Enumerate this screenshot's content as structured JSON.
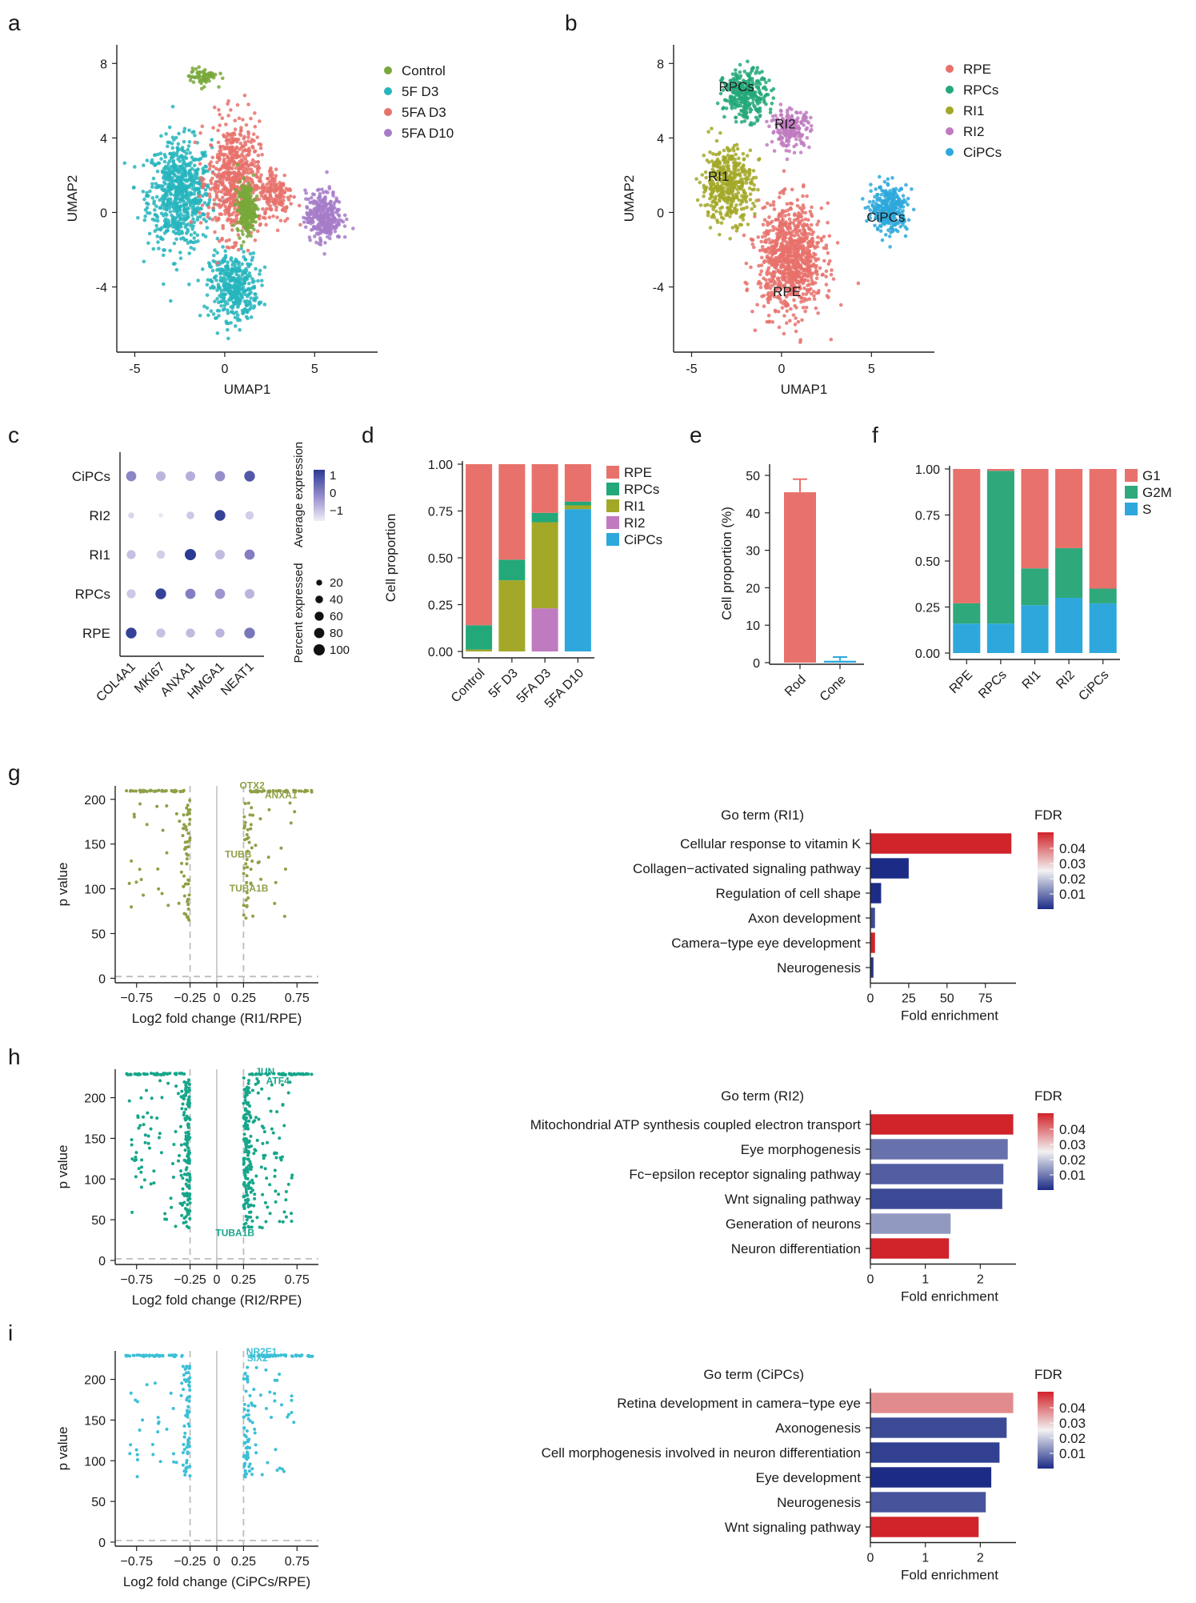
{
  "panel_labels": {
    "a": "a",
    "b": "b",
    "c": "c",
    "d": "d",
    "e": "e",
    "f": "f",
    "g": "g",
    "h": "h",
    "i": "i"
  },
  "colors": {
    "control": "#79a83b",
    "f5d3": "#27b5bd",
    "fad3": "#e8716b",
    "fad10": "#a67cc9",
    "rpe": "#e8716b",
    "rpcs": "#23a879",
    "ri1": "#a3a828",
    "ri2": "#c07ac0",
    "cipcs": "#2ea8dc",
    "g1": "#e8716b",
    "g2m": "#2fa87b",
    "s": "#2ea8dc",
    "volc_g": "#8ea046",
    "volc_h": "#17a68a",
    "volc_i": "#3cc0d6",
    "fdr_high": "#d1232a",
    "fdr_mid": "#f2f2f2",
    "fdr_low": "#1c2c86"
  },
  "chart_data": [
    {
      "id": "a",
      "type": "scatter",
      "title": "",
      "xlabel": "UMAP1",
      "ylabel": "UMAP2",
      "xticks": [
        "-5",
        "0",
        "5"
      ],
      "yticks": [
        "8",
        "4",
        "0",
        "-4"
      ],
      "xlim": [
        -6,
        8.5
      ],
      "ylim": [
        -7.5,
        9
      ],
      "legend": [
        "Control",
        "5F D3",
        "5FA D3",
        "5FA D10"
      ],
      "clusters": [
        {
          "name": "5F D3",
          "cx": -2.5,
          "cy": 1.0,
          "sx": 1.6,
          "sy": 2.6,
          "n": 700,
          "color": "#27b5bd"
        },
        {
          "name": "5F D3",
          "cx": 0.5,
          "cy": -4.0,
          "sx": 1.2,
          "sy": 1.6,
          "n": 400,
          "color": "#27b5bd"
        },
        {
          "name": "5FA D3",
          "cx": 0.5,
          "cy": 1.8,
          "sx": 1.3,
          "sy": 2.8,
          "n": 600,
          "color": "#e8716b"
        },
        {
          "name": "5FA D3",
          "cx": 2.8,
          "cy": 1.0,
          "sx": 0.9,
          "sy": 1.4,
          "n": 160,
          "color": "#e8716b"
        },
        {
          "name": "Control",
          "cx": 1.2,
          "cy": 0.2,
          "sx": 0.45,
          "sy": 1.2,
          "n": 260,
          "color": "#79a83b"
        },
        {
          "name": "Control",
          "cx": -1.2,
          "cy": 7.3,
          "sx": 0.7,
          "sy": 0.4,
          "n": 70,
          "color": "#79a83b"
        },
        {
          "name": "5FA D10",
          "cx": 5.5,
          "cy": -0.2,
          "sx": 0.9,
          "sy": 1.2,
          "n": 320,
          "color": "#a67cc9"
        }
      ]
    },
    {
      "id": "b",
      "type": "scatter",
      "title": "",
      "xlabel": "UMAP1",
      "ylabel": "UMAP2",
      "xticks": [
        "-5",
        "0",
        "5"
      ],
      "yticks": [
        "8",
        "4",
        "0",
        "-4"
      ],
      "xlim": [
        -6,
        8.5
      ],
      "ylim": [
        -7.5,
        9
      ],
      "legend": [
        "RPE",
        "RPCs",
        "RI1",
        "RI2",
        "CiPCs"
      ],
      "labels": [
        {
          "text": "RPCs",
          "x": -2.5,
          "y": 6.5
        },
        {
          "text": "RI2",
          "x": 0.2,
          "y": 4.5
        },
        {
          "text": "RI1",
          "x": -3.5,
          "y": 1.7
        },
        {
          "text": "CiPCs",
          "x": 5.8,
          "y": -0.5
        },
        {
          "text": "RPE",
          "x": 0.3,
          "y": -4.5
        }
      ],
      "clusters": [
        {
          "name": "RPE",
          "cx": 0.5,
          "cy": -2.5,
          "sx": 1.6,
          "sy": 2.6,
          "n": 900,
          "color": "#e8716b"
        },
        {
          "name": "RPCs",
          "cx": -2.0,
          "cy": 6.3,
          "sx": 1.1,
          "sy": 1.2,
          "n": 300,
          "color": "#23a879"
        },
        {
          "name": "RI1",
          "cx": -3.0,
          "cy": 1.5,
          "sx": 1.3,
          "sy": 1.8,
          "n": 450,
          "color": "#a3a828"
        },
        {
          "name": "RI2",
          "cx": 0.5,
          "cy": 4.5,
          "sx": 1.0,
          "sy": 0.9,
          "n": 200,
          "color": "#c07ac0"
        },
        {
          "name": "CiPCs",
          "cx": 6.0,
          "cy": 0.2,
          "sx": 0.9,
          "sy": 1.1,
          "n": 320,
          "color": "#2ea8dc"
        }
      ]
    },
    {
      "id": "c",
      "type": "dot",
      "genes": [
        "COL4A1",
        "MKI67",
        "ANXA1",
        "HMGA1",
        "NEAT1"
      ],
      "groups": [
        "CiPCs",
        "RI2",
        "RI1",
        "RPCs",
        "RPE"
      ],
      "avg_expr": [
        [
          0.3,
          -0.4,
          -0.3,
          0.2,
          0.9
        ],
        [
          -0.9,
          -1.2,
          -0.7,
          1.2,
          -0.8
        ],
        [
          -0.6,
          -0.8,
          1.3,
          -0.5,
          0.4
        ],
        [
          -0.7,
          1.2,
          0.4,
          0.1,
          -0.4
        ],
        [
          1.2,
          -0.6,
          -0.5,
          -0.4,
          0.5
        ]
      ],
      "pct_expr": [
        [
          80,
          70,
          70,
          80,
          90
        ],
        [
          20,
          10,
          40,
          90,
          50
        ],
        [
          60,
          50,
          100,
          70,
          80
        ],
        [
          60,
          90,
          80,
          80,
          70
        ],
        [
          90,
          60,
          60,
          60,
          90
        ]
      ],
      "legend_avg_title": "Average expression",
      "legend_avg_ticks": [
        "1",
        "0",
        "−1"
      ],
      "legend_pct_title": "Percent expressed",
      "legend_pct_ticks": [
        "20",
        "40",
        "60",
        "80",
        "100"
      ]
    },
    {
      "id": "d",
      "type": "bar",
      "stacked": true,
      "ylabel": "Cell proportion",
      "categories": [
        "Control",
        "5F D3",
        "5FA D3",
        "5FA D10"
      ],
      "yticks": [
        "1.00",
        "0.75",
        "0.50",
        "0.25",
        "0.00"
      ],
      "ylim": [
        0,
        1
      ],
      "series": [
        {
          "name": "CiPCs",
          "values": [
            0.0,
            0.0,
            0.0,
            0.76
          ],
          "color": "#2ea8dc"
        },
        {
          "name": "RI2",
          "values": [
            0.0,
            0.0,
            0.23,
            0.0
          ],
          "color": "#c07ac0"
        },
        {
          "name": "RI1",
          "values": [
            0.01,
            0.38,
            0.46,
            0.02
          ],
          "color": "#a3a828"
        },
        {
          "name": "RPCs",
          "values": [
            0.13,
            0.11,
            0.05,
            0.02
          ],
          "color": "#23a879"
        },
        {
          "name": "RPE",
          "values": [
            0.86,
            0.51,
            0.26,
            0.2
          ],
          "color": "#e8716b"
        }
      ],
      "legend": [
        "RPE",
        "RPCs",
        "RI1",
        "RI2",
        "CiPCs"
      ]
    },
    {
      "id": "e",
      "type": "bar",
      "ylabel": "Cell proportion (%)",
      "categories": [
        "Rod",
        "Cone"
      ],
      "values": [
        45.5,
        0.5
      ],
      "errors": [
        3.5,
        1.0
      ],
      "colors": [
        "#e8716b",
        "#2ea8dc"
      ],
      "yticks": [
        "50",
        "40",
        "30",
        "20",
        "10",
        "0"
      ],
      "ylim": [
        0,
        53
      ]
    },
    {
      "id": "f",
      "type": "bar",
      "stacked": true,
      "categories": [
        "RPE",
        "RPCs",
        "RI1",
        "RI2",
        "CiPCs"
      ],
      "yticks": [
        "1.00",
        "0.75",
        "0.50",
        "0.25",
        "0.00"
      ],
      "ylim": [
        0,
        1
      ],
      "series": [
        {
          "name": "S",
          "values": [
            0.16,
            0.16,
            0.26,
            0.3,
            0.27
          ],
          "color": "#2ea8dc"
        },
        {
          "name": "G2M",
          "values": [
            0.11,
            0.83,
            0.2,
            0.27,
            0.08
          ],
          "color": "#2fa87b"
        },
        {
          "name": "G1",
          "values": [
            0.73,
            0.01,
            0.54,
            0.43,
            0.65
          ],
          "color": "#e8716b"
        }
      ],
      "legend": [
        "G1",
        "G2M",
        "S"
      ]
    },
    {
      "id": "g",
      "type": "scatter",
      "subtype": "volcano",
      "xlabel": "Log2 fold change (RI1/RPE)",
      "ylabel": "p value",
      "xticks": [
        "−0.75",
        "−0.25",
        "0",
        "0.25",
        "0.75"
      ],
      "xtick_values": [
        -0.75,
        -0.25,
        0,
        0.25,
        0.75
      ],
      "yticks": [
        "200",
        "150",
        "100",
        "50",
        "0"
      ],
      "ytick_values": [
        200,
        150,
        100,
        50,
        0
      ],
      "xlim": [
        -0.95,
        0.95
      ],
      "ylim": [
        -5,
        215
      ],
      "labels": [
        {
          "text": "OTX2",
          "x": 0.33,
          "y": 212
        },
        {
          "text": "ANXA1",
          "x": 0.6,
          "y": 201
        },
        {
          "text": "TUBB",
          "x": 0.2,
          "y": 135
        },
        {
          "text": "TUBA1B",
          "x": 0.3,
          "y": 97
        }
      ],
      "n_left": 75,
      "n_right": 55,
      "top_band": 210,
      "p_min": 65,
      "p_max": 200
    },
    {
      "id": "h",
      "type": "scatter",
      "subtype": "volcano",
      "xlabel": "Log2 fold change (RI2/RPE)",
      "ylabel": "p value",
      "xticks": [
        "−0.75",
        "−0.25",
        "0",
        "0.25",
        "0.75"
      ],
      "xtick_values": [
        -0.75,
        -0.25,
        0,
        0.25,
        0.75
      ],
      "yticks": [
        "200",
        "150",
        "100",
        "50",
        "0"
      ],
      "ytick_values": [
        200,
        150,
        100,
        50,
        0
      ],
      "xlim": [
        -0.95,
        0.95
      ],
      "ylim": [
        -5,
        235
      ],
      "labels": [
        {
          "text": "JUN",
          "x": 0.45,
          "y": 228
        },
        {
          "text": "ATF4",
          "x": 0.57,
          "y": 217
        },
        {
          "text": "TUBA1B",
          "x": 0.17,
          "y": 30
        }
      ],
      "n_left": 200,
      "n_right": 230,
      "top_band": 230,
      "p_min": 40,
      "p_max": 225
    },
    {
      "id": "i",
      "type": "scatter",
      "subtype": "volcano",
      "xlabel": "Log2 fold change (CiPCs/RPE)",
      "ylabel": "p value",
      "xticks": [
        "−0.75",
        "−0.25",
        "0",
        "0.25",
        "0.75"
      ],
      "xtick_values": [
        -0.75,
        -0.25,
        0,
        0.25,
        0.75
      ],
      "yticks": [
        "200",
        "150",
        "100",
        "50",
        "0"
      ],
      "ytick_values": [
        200,
        150,
        100,
        50,
        0
      ],
      "xlim": [
        -0.95,
        0.95
      ],
      "ylim": [
        -5,
        235
      ],
      "labels": [
        {
          "text": "NR2E1",
          "x": 0.42,
          "y": 230
        },
        {
          "text": "SIX2",
          "x": 0.38,
          "y": 222
        }
      ],
      "n_left": 95,
      "n_right": 95,
      "top_band": 230,
      "p_min": 80,
      "p_max": 220
    },
    {
      "id": "g_go",
      "type": "bar",
      "orientation": "horizontal",
      "title": "Go term (RI1)",
      "xlabel": "Fold enrichment",
      "xticks": [
        "0",
        "25",
        "50",
        "75"
      ],
      "xtick_values": [
        0,
        25,
        50,
        75
      ],
      "xlim": [
        0,
        95
      ],
      "categories": [
        "Cellular response to vitamin K",
        "Collagen−activated signaling pathway",
        "Regulation of cell shape",
        "Axon development",
        "Camera−type eye development",
        "Neurogenesis"
      ],
      "values": [
        92,
        25,
        7,
        3,
        3,
        2
      ],
      "fdr": [
        0.045,
        0.005,
        0.004,
        0.008,
        0.046,
        0.006
      ],
      "legend_title": "FDR",
      "legend_ticks": [
        "0.04",
        "0.03",
        "0.02",
        "0.01"
      ]
    },
    {
      "id": "h_go",
      "type": "bar",
      "orientation": "horizontal",
      "title": "Go term (RI2)",
      "xlabel": "Fold enrichment",
      "xticks": [
        "0",
        "1",
        "2"
      ],
      "xtick_values": [
        0,
        1,
        2
      ],
      "xlim": [
        0,
        2.65
      ],
      "categories": [
        "Mitochondrial ATP synthesis coupled electron transport",
        "Eye morphogenesis",
        "Fc−epsilon receptor signaling pathway",
        "Wnt signaling pathway",
        "Generation of neurons",
        "Neuron differentiation"
      ],
      "values": [
        2.6,
        2.5,
        2.42,
        2.4,
        1.46,
        1.43
      ],
      "fdr": [
        0.047,
        0.012,
        0.01,
        0.008,
        0.016,
        0.045
      ],
      "legend_title": "FDR",
      "legend_ticks": [
        "0.04",
        "0.03",
        "0.02",
        "0.01"
      ]
    },
    {
      "id": "i_go",
      "type": "bar",
      "orientation": "horizontal",
      "title": "Go term (CiPCs)",
      "xlabel": "Fold enrichment",
      "xticks": [
        "0",
        "1",
        "2"
      ],
      "xtick_values": [
        0,
        1,
        2
      ],
      "xlim": [
        0,
        2.65
      ],
      "categories": [
        "Retina development in camera−type eye",
        "Axonogenesis",
        "Cell morphogenesis involved in neuron differentiation",
        "Eye development",
        "Neurogenesis",
        "Wnt signaling pathway"
      ],
      "values": [
        2.6,
        2.48,
        2.35,
        2.2,
        2.1,
        1.97
      ],
      "fdr": [
        0.035,
        0.008,
        0.007,
        0.004,
        0.009,
        0.046
      ],
      "legend_title": "FDR",
      "legend_ticks": [
        "0.04",
        "0.03",
        "0.02",
        "0.01"
      ]
    }
  ]
}
